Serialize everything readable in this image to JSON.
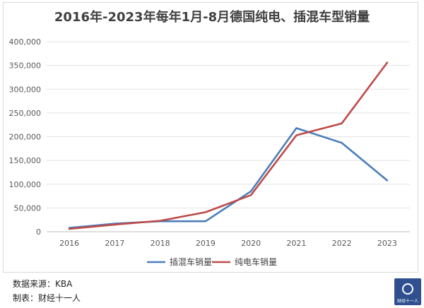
{
  "chart_data": {
    "type": "line",
    "title": "2016年-2023年每年1月-8月德国纯电、插混车型销量",
    "categories": [
      "2016",
      "2017",
      "2018",
      "2019",
      "2020",
      "2021",
      "2022",
      "2023"
    ],
    "series": [
      {
        "name": "插混车销量",
        "color": "#4a7ebb",
        "values": [
          8000,
          17000,
          22000,
          22000,
          85000,
          218000,
          187000,
          108000
        ]
      },
      {
        "name": "纯电车销量",
        "color": "#be4b48",
        "values": [
          6000,
          15000,
          23000,
          41000,
          77000,
          203000,
          228000,
          356000
        ]
      }
    ],
    "ylim": [
      0,
      400000
    ],
    "yticks": [
      0,
      50000,
      100000,
      150000,
      200000,
      250000,
      300000,
      350000,
      400000
    ],
    "ytick_labels": [
      "0",
      "50,000",
      "100,000",
      "150,000",
      "200,000",
      "250,000",
      "300,000",
      "350,000",
      "400,000"
    ],
    "grid": true,
    "legend_position": "bottom"
  },
  "footer": {
    "source": "数据来源：KBA",
    "maker": "制表：财经十一人"
  },
  "logo": {
    "text": "财经十一人"
  }
}
